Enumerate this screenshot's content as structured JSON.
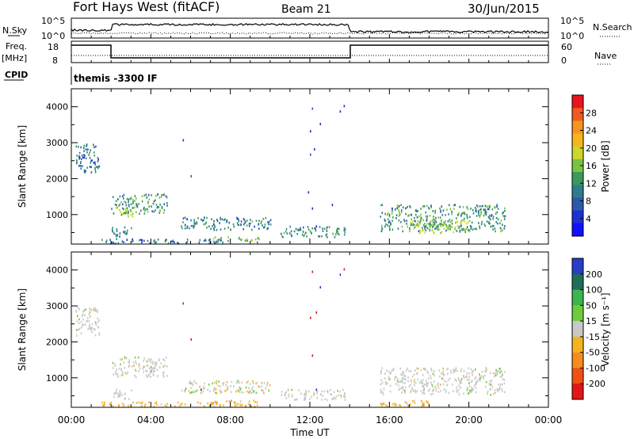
{
  "header": {
    "station": "Fort Hays West (fitACF)",
    "beam": "Beam 21",
    "date": "30/Jun/2015"
  },
  "summary_panels": {
    "nsky_label": "N.Sky",
    "nsky_ticks": [
      "10^5",
      "10^0"
    ],
    "nsearch_label": "N.Search",
    "nsearch_ticks": [
      "10^5",
      "10^0"
    ],
    "freq_label_1": "Freq.",
    "freq_label_2": "[MHz]",
    "freq_ticks": [
      "18",
      "8"
    ],
    "nave_label": "Nave",
    "nave_ticks": [
      "60",
      "0"
    ],
    "cpid_label": "CPID",
    "cpid_value": "themis -3300 IF"
  },
  "chart_data": [
    {
      "type": "heatmap",
      "panel": "power",
      "ylabel": "Slant Range [km]",
      "ylim": [
        180,
        4500
      ],
      "yticks": [
        1000,
        2000,
        3000,
        4000
      ],
      "colorbar": {
        "label": "Power [dB]",
        "ticks": [
          "28",
          "24",
          "20",
          "16",
          "12",
          "8",
          "4"
        ],
        "colors": [
          "#e8141e",
          "#f05a1e",
          "#f7941d",
          "#f7b51c",
          "#cdd62a",
          "#7cc242",
          "#3a9a5a",
          "#2e7d8c",
          "#2a5aa8",
          "#1c2fd8",
          "#1010ff"
        ]
      },
      "patches": [
        {
          "t": [
            0.2,
            1.4
          ],
          "r": [
            2200,
            3000
          ],
          "level": 0.45
        },
        {
          "t": [
            2.0,
            4.8
          ],
          "r": [
            1050,
            1600
          ],
          "level": 0.6
        },
        {
          "t": [
            2.2,
            3.2
          ],
          "r": [
            950,
            1250
          ],
          "level": 0.8
        },
        {
          "t": [
            2.0,
            3.0
          ],
          "r": [
            400,
            700
          ],
          "level": 0.5
        },
        {
          "t": [
            5.5,
            10.0
          ],
          "r": [
            600,
            950
          ],
          "level": 0.5
        },
        {
          "t": [
            7.0,
            9.5
          ],
          "r": [
            250,
            400
          ],
          "level": 0.75
        },
        {
          "t": [
            10.5,
            13.8
          ],
          "r": [
            400,
            700
          ],
          "level": 0.55
        },
        {
          "t": [
            15.5,
            21.8
          ],
          "r": [
            550,
            1300
          ],
          "level": 0.6
        },
        {
          "t": [
            17.0,
            20.0
          ],
          "r": [
            500,
            850
          ],
          "level": 0.85
        },
        {
          "t": [
            1.5,
            7.5
          ],
          "r": [
            220,
            350
          ],
          "level": 0.45
        }
      ],
      "points": [
        {
          "t": 12.1,
          "r": 3980
        },
        {
          "t": 12.5,
          "r": 3550
        },
        {
          "t": 13.5,
          "r": 3900
        },
        {
          "t": 13.7,
          "r": 4050
        },
        {
          "t": 12.0,
          "r": 3350
        },
        {
          "t": 12.2,
          "r": 2850
        },
        {
          "t": 5.6,
          "r": 3100
        },
        {
          "t": 6.0,
          "r": 2100
        },
        {
          "t": 12.0,
          "r": 2700
        },
        {
          "t": 11.9,
          "r": 1650
        },
        {
          "t": 12.1,
          "r": 1200
        },
        {
          "t": 12.3,
          "r": 700
        },
        {
          "t": 13.1,
          "r": 1300
        }
      ]
    },
    {
      "type": "heatmap",
      "panel": "velocity",
      "ylabel": "Slant Range [km]",
      "xlabel": "Time UT",
      "ylim": [
        180,
        4500
      ],
      "yticks": [
        1000,
        2000,
        3000,
        4000
      ],
      "xticks": [
        "00:00",
        "04:00",
        "08:00",
        "12:00",
        "16:00",
        "20:00",
        "00:00"
      ],
      "xlim_hours": [
        0,
        24
      ],
      "colorbar": {
        "label": "Velocity [m s⁻¹]",
        "ticks": [
          "200",
          "100",
          "50",
          "15",
          "-15",
          "-50",
          "-100",
          "-200"
        ],
        "colors": [
          "#2a3cc8",
          "#1e6e5a",
          "#3cb450",
          "#6ecc3c",
          "#c8c8c8",
          "#f5b41e",
          "#f78c1e",
          "#f05014",
          "#e61414"
        ]
      },
      "patches": [
        {
          "t": [
            0.2,
            1.4
          ],
          "r": [
            2200,
            3000
          ],
          "cls": "grey"
        },
        {
          "t": [
            2.0,
            4.8
          ],
          "r": [
            1050,
            1600
          ],
          "cls": "grey"
        },
        {
          "t": [
            2.0,
            3.0
          ],
          "r": [
            400,
            700
          ],
          "cls": "grey"
        },
        {
          "t": [
            5.5,
            10.0
          ],
          "r": [
            600,
            950
          ],
          "cls": "mixed"
        },
        {
          "t": [
            7.0,
            9.5
          ],
          "r": [
            220,
            400
          ],
          "cls": "orange"
        },
        {
          "t": [
            10.5,
            13.8
          ],
          "r": [
            400,
            700
          ],
          "cls": "grey"
        },
        {
          "t": [
            15.5,
            21.8
          ],
          "r": [
            550,
            1300
          ],
          "cls": "grey"
        },
        {
          "t": [
            15.5,
            18.0
          ],
          "r": [
            220,
            400
          ],
          "cls": "orange"
        },
        {
          "t": [
            1.5,
            7.5
          ],
          "r": [
            220,
            350
          ],
          "cls": "orange"
        }
      ],
      "points": [
        {
          "t": 12.1,
          "r": 3980
        },
        {
          "t": 12.5,
          "r": 3550
        },
        {
          "t": 13.5,
          "r": 3900
        },
        {
          "t": 13.7,
          "r": 4050
        },
        {
          "t": 12.0,
          "r": 2700
        },
        {
          "t": 12.3,
          "r": 2850
        },
        {
          "t": 5.6,
          "r": 3100
        },
        {
          "t": 6.0,
          "r": 2100
        },
        {
          "t": 12.3,
          "r": 700
        },
        {
          "t": 12.1,
          "r": 1650
        },
        {
          "t": 6.5,
          "r": 700
        }
      ]
    }
  ]
}
